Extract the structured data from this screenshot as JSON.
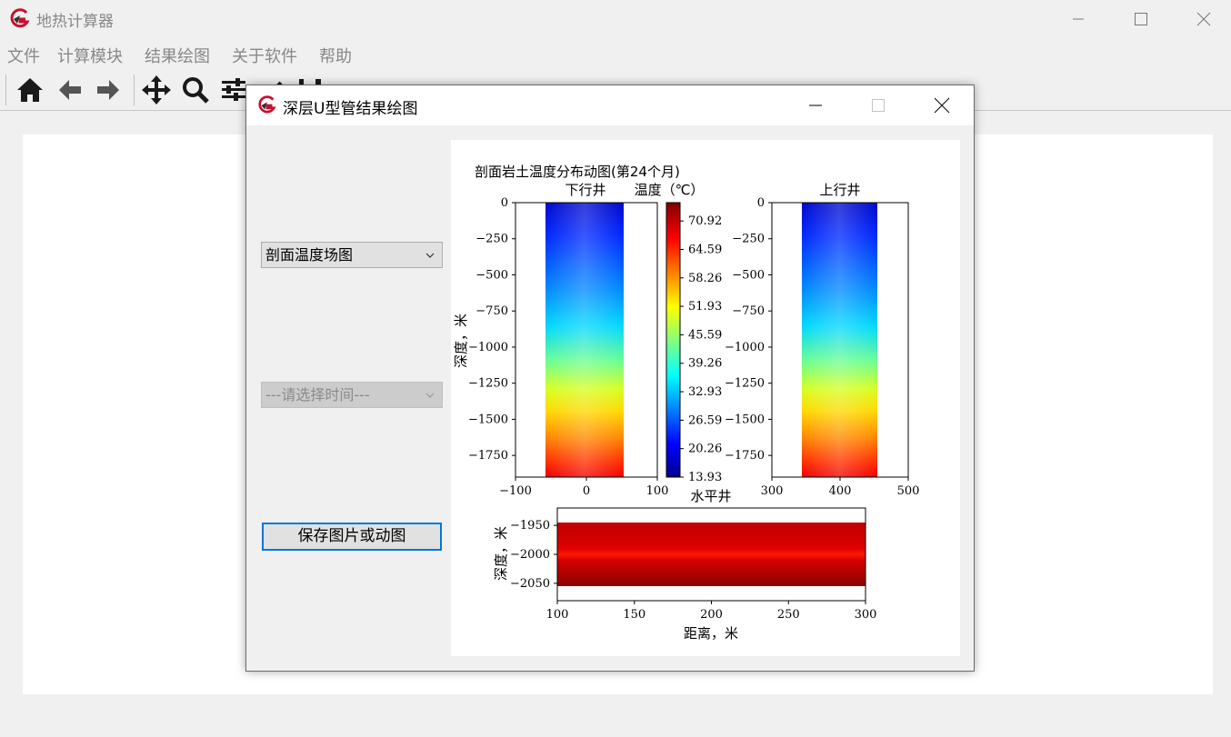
{
  "app": {
    "title": "地热计算器"
  },
  "menu": [
    "文件",
    "计算模块",
    "结果绘图",
    "关于软件",
    "帮助"
  ],
  "toolbar_icons": [
    "home-icon",
    "back-arrow-icon",
    "forward-arrow-icon",
    "pan-icon",
    "zoom-icon",
    "configure-subplots-icon",
    "edit-axis-icon",
    "save-figure-icon"
  ],
  "dialog": {
    "title": "深层U型管结果绘图",
    "plot_type": "剖面温度场图",
    "time_placeholder": "---请选择时间---",
    "save_label": "保存图片或动图"
  },
  "colors": {
    "accent": "#0078d7",
    "logo": "#c8102e"
  },
  "chart_data": [
    {
      "type": "heatmap",
      "suptitle": "剖面岩土温度分布动图(第24个月)",
      "title": "下行井",
      "ylabel": "深度，米",
      "xlim": [
        -100,
        100
      ],
      "ylim": [
        -1900,
        0
      ],
      "xticks": [
        "−100",
        "0",
        "100"
      ],
      "yticks": [
        "0",
        "−250",
        "−500",
        "−750",
        "−1000",
        "−1250",
        "−1500",
        "−1750"
      ],
      "data_extent_x": [
        -55,
        55
      ]
    },
    {
      "type": "colorbar",
      "title": "温度（℃）",
      "range": [
        13.93,
        75.0
      ],
      "ticks": [
        "70.92",
        "64.59",
        "58.26",
        "51.93",
        "45.59",
        "39.26",
        "32.93",
        "26.59",
        "20.26",
        "13.93"
      ]
    },
    {
      "type": "heatmap",
      "title": "上行井",
      "xlim": [
        300,
        500
      ],
      "ylim": [
        -1900,
        0
      ],
      "xticks": [
        "300",
        "400",
        "500"
      ],
      "yticks": [
        "0",
        "−250",
        "−500",
        "−750",
        "−1000",
        "−1250",
        "−1500",
        "−1750"
      ],
      "data_extent_x": [
        345,
        455
      ]
    },
    {
      "type": "heatmap",
      "title": "水平井",
      "xlabel": "距离，米",
      "ylabel": "深度，米",
      "xlim": [
        100,
        300
      ],
      "ylim": [
        -2080,
        -1920
      ],
      "xticks": [
        "100",
        "150",
        "200",
        "250",
        "300"
      ],
      "yticks": [
        "−1950",
        "−2000",
        "−2050"
      ],
      "data_extent_y": [
        -2055,
        -1945
      ]
    }
  ]
}
